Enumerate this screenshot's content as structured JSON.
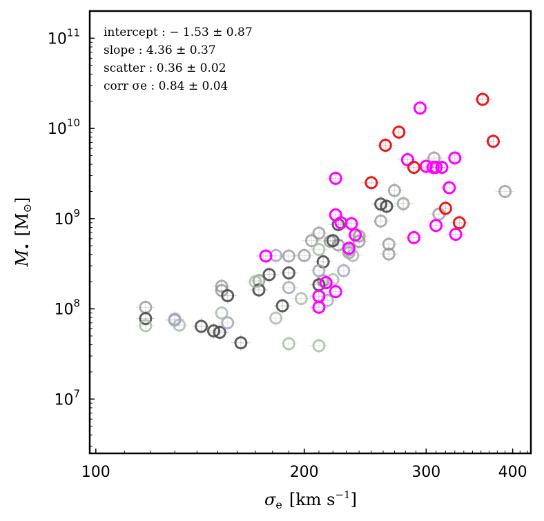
{
  "chart_data": {
    "type": "scatter",
    "xscale": "log",
    "yscale": "log",
    "xlim": [
      98,
      425
    ],
    "ylim": [
      2500000,
      200000000000
    ],
    "x_ticks": [
      {
        "value": 100,
        "label": "100"
      },
      {
        "value": 200,
        "label": "200"
      },
      {
        "value": 300,
        "label": "300"
      },
      {
        "value": 400,
        "label": "400"
      }
    ],
    "y_ticks": [
      {
        "value": 10000000,
        "base": "10",
        "exp": "7"
      },
      {
        "value": 100000000,
        "base": "10",
        "exp": "8"
      },
      {
        "value": 1000000000,
        "base": "10",
        "exp": "9"
      },
      {
        "value": 10000000000,
        "base": "10",
        "exp": "10"
      },
      {
        "value": 100000000000,
        "base": "10",
        "exp": "11"
      }
    ],
    "xlabel": {
      "symbol": "σ",
      "sub": "e",
      "unit": "[km s",
      "exp": "−1",
      "close": "]"
    },
    "ylabel": {
      "symbol": "M",
      "sub": "•",
      "unit": "[M",
      "sub2": "⊙",
      "close": "]"
    },
    "annotations": [
      "intercept :  − 1.53 ± 0.87",
      "slope :  4.36 ± 0.37",
      "scatter :  0.36 ± 0.02",
      "corr σe :  0.84 ± 0.04"
    ],
    "colors": {
      "grey": "#8c8c8c",
      "dark": "#4a4a4a",
      "lightgreen": "#a8b8a8",
      "lavender": "#a6a6c8",
      "magenta": "#ff00ff",
      "red": "#e41a1c"
    },
    "series": [
      {
        "name": "grey",
        "color": "#8c8c8c",
        "points": [
          [
            118,
            104000000
          ],
          [
            130,
            75000000
          ],
          [
            152,
            178000000
          ],
          [
            152,
            160000000
          ],
          [
            172,
            205000000
          ],
          [
            190,
            385000000
          ],
          [
            200,
            390000000
          ],
          [
            205,
            570000000
          ],
          [
            210,
            690000000
          ],
          [
            213,
            205000000
          ],
          [
            218,
            560000000
          ],
          [
            224,
            510000000
          ],
          [
            232,
            420000000
          ],
          [
            240,
            640000000
          ],
          [
            240,
            560000000
          ],
          [
            258,
            940000000
          ],
          [
            265,
            520000000
          ],
          [
            265,
            405000000
          ],
          [
            270,
            2050000000
          ],
          [
            278,
            1460000000
          ],
          [
            308,
            4700000000
          ],
          [
            313,
            1120000000
          ],
          [
            390,
            2000000000
          ]
        ]
      },
      {
        "name": "dark",
        "color": "#4a4a4a",
        "points": [
          [
            118,
            78000000
          ],
          [
            142,
            64000000
          ],
          [
            148,
            57000000
          ],
          [
            151,
            55000000
          ],
          [
            155,
            140000000
          ],
          [
            162,
            42000000
          ],
          [
            172,
            162000000
          ],
          [
            178,
            240000000
          ],
          [
            186,
            108000000
          ],
          [
            190,
            250000000
          ],
          [
            210,
            185000000
          ],
          [
            213,
            332000000
          ],
          [
            220,
            570000000
          ],
          [
            224,
            860000000
          ],
          [
            258,
            1450000000
          ],
          [
            263,
            1370000000
          ]
        ]
      },
      {
        "name": "lightgreen",
        "color": "#a8b8a8",
        "points": [
          [
            118,
            65000000
          ],
          [
            132,
            66000000
          ],
          [
            152,
            90000000
          ],
          [
            170,
            200000000
          ],
          [
            182,
            79000000
          ],
          [
            190,
            41000000
          ],
          [
            198,
            130000000
          ],
          [
            210,
            39000000
          ],
          [
            210,
            455000000
          ],
          [
            220,
            210000000
          ],
          [
            235,
            390000000
          ],
          [
            278,
            1470000000
          ]
        ]
      },
      {
        "name": "lavender",
        "color": "#a6a6c8",
        "points": [
          [
            130,
            77000000
          ],
          [
            155,
            70000000
          ],
          [
            182,
            390000000
          ],
          [
            190,
            172000000
          ],
          [
            210,
            265000000
          ],
          [
            216,
            124000000
          ],
          [
            228,
            265000000
          ],
          [
            232,
            450000000
          ]
        ]
      },
      {
        "name": "magenta",
        "color": "#ff00ff",
        "points": [
          [
            176,
            385000000
          ],
          [
            210,
            104000000
          ],
          [
            210,
            138000000
          ],
          [
            215,
            195000000
          ],
          [
            222,
            155000000
          ],
          [
            222,
            2800000000
          ],
          [
            222,
            1100000000
          ],
          [
            226,
            900000000
          ],
          [
            232,
            470000000
          ],
          [
            234,
            880000000
          ],
          [
            237,
            660000000
          ],
          [
            282,
            4500000000
          ],
          [
            288,
            615000000
          ],
          [
            294,
            16800000000
          ],
          [
            300,
            3800000000
          ],
          [
            307,
            3700000000
          ],
          [
            310,
            3700000000
          ],
          [
            316,
            3700000000
          ],
          [
            324,
            2200000000
          ],
          [
            330,
            4700000000
          ],
          [
            331,
            670000000
          ],
          [
            310,
            840000000
          ]
        ]
      },
      {
        "name": "red",
        "color": "#e41a1c",
        "points": [
          [
            250,
            2500000000
          ],
          [
            262,
            6500000000
          ],
          [
            274,
            9100000000
          ],
          [
            288,
            3700000000
          ],
          [
            320,
            1300000000
          ],
          [
            335,
            900000000
          ],
          [
            362,
            21000000000
          ],
          [
            375,
            7200000000
          ]
        ]
      }
    ]
  }
}
